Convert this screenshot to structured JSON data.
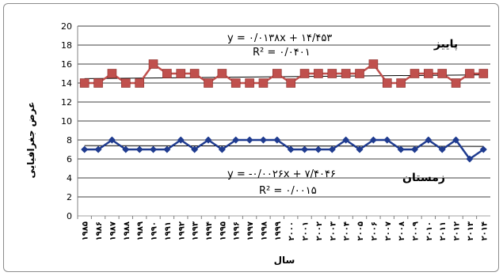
{
  "chart_data": {
    "type": "line",
    "title": "",
    "xlabel": "سال",
    "ylabel": "عرض جغرافیایی",
    "ylim": [
      0,
      20
    ],
    "yticks": [
      "0",
      "2",
      "4",
      "6",
      "8",
      "10",
      "12",
      "14",
      "16",
      "18",
      "20"
    ],
    "grid": true,
    "x": [
      "۱۹۸۵",
      "۱۹۸۶",
      "۱۹۸۷",
      "۱۹۸۸",
      "۱۹۸۹",
      "۱۹۹۰",
      "۱۹۹۱",
      "۱۹۹۲",
      "۱۹۹۳",
      "۱۹۹۴",
      "۱۹۹۵",
      "۱۹۹۶",
      "۱۹۹۷",
      "۱۹۹۸",
      "۱۹۹۹",
      "۲۰۰۰",
      "۲۰۰۱",
      "۲۰۰۲",
      "۲۰۰۳",
      "۲۰۰۴",
      "۲۰۰۵",
      "۲۰۰۶",
      "۲۰۰۷",
      "۲۰۰۸",
      "۲۰۰۹",
      "۲۰۱۰",
      "۲۰۱۱",
      "۲۰۱۲",
      "۲۰۱۳",
      "۲۰۱۴"
    ],
    "series": [
      {
        "name": "پاییز",
        "color": "#c0504d",
        "marker": "square",
        "values": [
          14,
          14,
          15,
          14,
          14,
          16,
          15,
          15,
          15,
          14,
          15,
          14,
          14,
          14,
          15,
          14,
          15,
          15,
          15,
          15,
          15,
          16,
          14,
          14,
          15,
          15,
          15,
          14,
          15,
          15
        ],
        "trendline": {
          "slope": 0.0138,
          "intercept": 14.453
        },
        "equation": "y = ۰/۰۱۳۸x + ۱۴/۴۵۳",
        "r2": "R² = ۰/۰۴۰۱"
      },
      {
        "name": "زمستان",
        "color": "#1f3b8f",
        "marker": "diamond",
        "values": [
          7,
          7,
          8,
          7,
          7,
          7,
          7,
          8,
          7,
          8,
          7,
          8,
          8,
          8,
          8,
          7,
          7,
          7,
          7,
          8,
          7,
          8,
          8,
          7,
          7,
          8,
          7,
          8,
          6,
          7
        ],
        "trendline": {
          "slope": -0.0026,
          "intercept": 7.4046
        },
        "equation": "y = -۰/۰۰۲۶x + ۷/۴۰۴۶",
        "r2": "R² = ۰/۰۰۱۵"
      }
    ]
  }
}
